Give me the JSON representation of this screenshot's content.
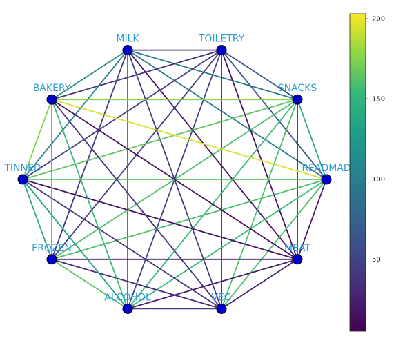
{
  "chart_data": {
    "type": "network",
    "nodes": [
      "MILK",
      "TOILETRY",
      "SNACKS",
      "READMAD",
      "MEAT",
      "VEG",
      "ALCOHOL",
      "FROZEN",
      "TINNED",
      "BAKERY"
    ],
    "edges": [
      {
        "source": "MILK",
        "target": "TOILETRY",
        "value": 30
      },
      {
        "source": "MILK",
        "target": "SNACKS",
        "value": 100
      },
      {
        "source": "MILK",
        "target": "READMAD",
        "value": 95
      },
      {
        "source": "MILK",
        "target": "MEAT",
        "value": 15
      },
      {
        "source": "MILK",
        "target": "VEG",
        "value": 45
      },
      {
        "source": "MILK",
        "target": "ALCOHOL",
        "value": 90
      },
      {
        "source": "MILK",
        "target": "FROZEN",
        "value": 40
      },
      {
        "source": "MILK",
        "target": "TINNED",
        "value": 100
      },
      {
        "source": "MILK",
        "target": "BAKERY",
        "value": 115
      },
      {
        "source": "TOILETRY",
        "target": "SNACKS",
        "value": 65
      },
      {
        "source": "TOILETRY",
        "target": "READMAD",
        "value": 60
      },
      {
        "source": "TOILETRY",
        "target": "MEAT",
        "value": 15
      },
      {
        "source": "TOILETRY",
        "target": "VEG",
        "value": 25
      },
      {
        "source": "TOILETRY",
        "target": "ALCOHOL",
        "value": 50
      },
      {
        "source": "TOILETRY",
        "target": "FROZEN",
        "value": 45
      },
      {
        "source": "TOILETRY",
        "target": "TINNED",
        "value": 45
      },
      {
        "source": "TOILETRY",
        "target": "BAKERY",
        "value": 40
      },
      {
        "source": "SNACKS",
        "target": "READMAD",
        "value": 140
      },
      {
        "source": "SNACKS",
        "target": "MEAT",
        "value": 30
      },
      {
        "source": "SNACKS",
        "target": "VEG",
        "value": 160
      },
      {
        "source": "SNACKS",
        "target": "ALCOHOL",
        "value": 155
      },
      {
        "source": "SNACKS",
        "target": "FROZEN",
        "value": 160
      },
      {
        "source": "SNACKS",
        "target": "TINNED",
        "value": 165
      },
      {
        "source": "SNACKS",
        "target": "BAKERY",
        "value": 175
      },
      {
        "source": "READMAD",
        "target": "MEAT",
        "value": 20
      },
      {
        "source": "READMAD",
        "target": "VEG",
        "value": 160
      },
      {
        "source": "READMAD",
        "target": "ALCOHOL",
        "value": 155
      },
      {
        "source": "READMAD",
        "target": "FROZEN",
        "value": 160
      },
      {
        "source": "READMAD",
        "target": "TINNED",
        "value": 165
      },
      {
        "source": "READMAD",
        "target": "BAKERY",
        "value": 195
      },
      {
        "source": "MEAT",
        "target": "VEG",
        "value": 25
      },
      {
        "source": "MEAT",
        "target": "ALCOHOL",
        "value": 20
      },
      {
        "source": "MEAT",
        "target": "FROZEN",
        "value": 20
      },
      {
        "source": "MEAT",
        "target": "TINNED",
        "value": 15
      },
      {
        "source": "MEAT",
        "target": "BAKERY",
        "value": 15
      },
      {
        "source": "VEG",
        "target": "ALCOHOL",
        "value": 45
      },
      {
        "source": "VEG",
        "target": "FROZEN",
        "value": 30
      },
      {
        "source": "VEG",
        "target": "TINNED",
        "value": 40
      },
      {
        "source": "VEG",
        "target": "BAKERY",
        "value": 35
      },
      {
        "source": "ALCOHOL",
        "target": "FROZEN",
        "value": 165
      },
      {
        "source": "ALCOHOL",
        "target": "TINNED",
        "value": 130
      },
      {
        "source": "ALCOHOL",
        "target": "BAKERY",
        "value": 155
      },
      {
        "source": "FROZEN",
        "target": "TINNED",
        "value": 140
      },
      {
        "source": "FROZEN",
        "target": "BAKERY",
        "value": 160
      },
      {
        "source": "TINNED",
        "target": "BAKERY",
        "value": 175
      }
    ],
    "colorbar": {
      "colormap": "viridis",
      "range": [
        5,
        203
      ],
      "ticks": [
        50,
        100,
        150,
        200
      ],
      "tick_labels": [
        "50",
        "100",
        "150",
        "200"
      ]
    },
    "node_color": "#0000cc",
    "label_color": "#2a9fd6"
  }
}
